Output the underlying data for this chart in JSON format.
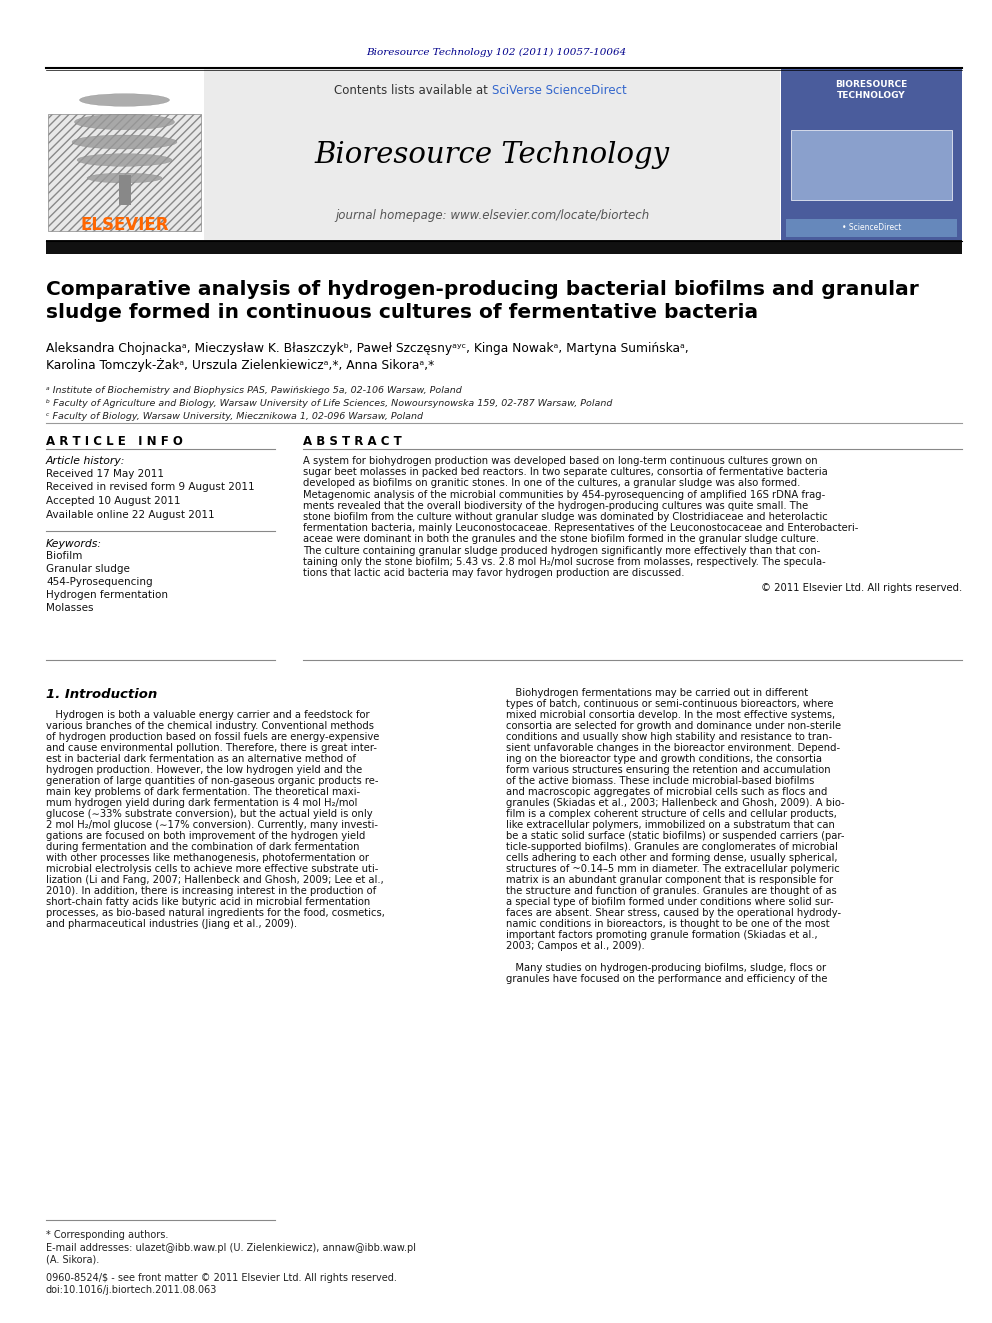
{
  "journal_ref": "Bioresource Technology 102 (2011) 10057-10064",
  "journal_name": "Bioresource Technology",
  "journal_homepage": "journal homepage: www.elsevier.com/locate/biortech",
  "contents_text_plain": "Contents lists available at ",
  "contents_text_link": "SciVerse ScienceDirect",
  "elsevier_text": "ELSEVIER",
  "title_line1": "Comparative analysis of hydrogen-producing bacterial biofilms and granular",
  "title_line2": "sludge formed in continuous cultures of fermentative bacteria",
  "authors_line1": "Aleksandra Chojnackaᵃ, Mieczysław K. Błaszczykᵇ, Paweł Szczęsnyᵃʸᶜ, Kinga Nowakᵃ, Martyna Sumińskaᵃ,",
  "authors_line2": "Karolina Tomczyk-Żakᵃ, Urszula Zielenkiewiczᵃ,*, Anna Sikoraᵃ,*",
  "affil_a": "ᵃ Institute of Biochemistry and Biophysics PAS, Pawińskiego 5a, 02-106 Warsaw, Poland",
  "affil_b": "ᵇ Faculty of Agriculture and Biology, Warsaw University of Life Sciences, Nowoursynowska 159, 02-787 Warsaw, Poland",
  "affil_c": "ᶜ Faculty of Biology, Warsaw University, Miecznikowa 1, 02-096 Warsaw, Poland",
  "article_info_title": "A R T I C L E   I N F O",
  "article_history_title": "Article history:",
  "received1": "Received 17 May 2011",
  "received2": "Received in revised form 9 August 2011",
  "accepted": "Accepted 10 August 2011",
  "available": "Available online 22 August 2011",
  "keywords_title": "Keywords:",
  "keywords": [
    "Biofilm",
    "Granular sludge",
    "454-Pyrosequencing",
    "Hydrogen fermentation",
    "Molasses"
  ],
  "abstract_title": "A B S T R A C T",
  "abstract_lines": [
    "A system for biohydrogen production was developed based on long-term continuous cultures grown on",
    "sugar beet molasses in packed bed reactors. In two separate cultures, consortia of fermentative bacteria",
    "developed as biofilms on granitic stones. In one of the cultures, a granular sludge was also formed.",
    "Metagenomic analysis of the microbial communities by 454-pyrosequencing of amplified 16S rDNA frag-",
    "ments revealed that the overall biodiversity of the hydrogen-producing cultures was quite small. The",
    "stone biofilm from the culture without granular sludge was dominated by Clostridiaceae and heterolactic",
    "fermentation bacteria, mainly Leuconostocaceae. Representatives of the Leuconostocaceae and Enterobacteri-",
    "aceae were dominant in both the granules and the stone biofilm formed in the granular sludge culture.",
    "The culture containing granular sludge produced hydrogen significantly more effectively than that con-",
    "taining only the stone biofilm; 5.43 vs. 2.8 mol H₂/mol sucrose from molasses, respectively. The specula-",
    "tions that lactic acid bacteria may favor hydrogen production are discussed."
  ],
  "abstract_copyright": "© 2011 Elsevier Ltd. All rights reserved.",
  "section1_title": "1. Introduction",
  "intro_col1_lines": [
    "   Hydrogen is both a valuable energy carrier and a feedstock for",
    "various branches of the chemical industry. Conventional methods",
    "of hydrogen production based on fossil fuels are energy-expensive",
    "and cause environmental pollution. Therefore, there is great inter-",
    "est in bacterial dark fermentation as an alternative method of",
    "hydrogen production. However, the low hydrogen yield and the",
    "generation of large quantities of non-gaseous organic products re-",
    "main key problems of dark fermentation. The theoretical maxi-",
    "mum hydrogen yield during dark fermentation is 4 mol H₂/mol",
    "glucose (∼33% substrate conversion), but the actual yield is only",
    "2 mol H₂/mol glucose (∼17% conversion). Currently, many investi-",
    "gations are focused on both improvement of the hydrogen yield",
    "during fermentation and the combination of dark fermentation",
    "with other processes like methanogenesis, photofermentation or",
    "microbial electrolysis cells to achieve more effective substrate uti-",
    "lization (Li and Fang, 2007; Hallenbeck and Ghosh, 2009; Lee et al.,",
    "2010). In addition, there is increasing interest in the production of",
    "short-chain fatty acids like butyric acid in microbial fermentation",
    "processes, as bio-based natural ingredients for the food, cosmetics,",
    "and pharmaceutical industries (Jiang et al., 2009)."
  ],
  "intro_col2_lines": [
    "   Biohydrogen fermentations may be carried out in different",
    "types of batch, continuous or semi-continuous bioreactors, where",
    "mixed microbial consortia develop. In the most effective systems,",
    "consortia are selected for growth and dominance under non-sterile",
    "conditions and usually show high stability and resistance to tran-",
    "sient unfavorable changes in the bioreactor environment. Depend-",
    "ing on the bioreactor type and growth conditions, the consortia",
    "form various structures ensuring the retention and accumulation",
    "of the active biomass. These include microbial-based biofilms",
    "and macroscopic aggregates of microbial cells such as flocs and",
    "granules (Skiadas et al., 2003; Hallenbeck and Ghosh, 2009). A bio-",
    "film is a complex coherent structure of cells and cellular products,",
    "like extracellular polymers, immobilized on a substratum that can",
    "be a static solid surface (static biofilms) or suspended carriers (par-",
    "ticle-supported biofilms). Granules are conglomerates of microbial",
    "cells adhering to each other and forming dense, usually spherical,",
    "structures of ~0.14–5 mm in diameter. The extracellular polymeric",
    "matrix is an abundant granular component that is responsible for",
    "the structure and function of granules. Granules are thought of as",
    "a special type of biofilm formed under conditions where solid sur-",
    "faces are absent. Shear stress, caused by the operational hydrody-",
    "namic conditions in bioreactors, is thought to be one of the most",
    "important factors promoting granule formation (Skiadas et al.,",
    "2003; Campos et al., 2009)."
  ],
  "col2_para2_lines": [
    "   Many studies on hydrogen-producing biofilms, sludge, flocs or",
    "granules have focused on the performance and efficiency of the"
  ],
  "footnote_star": "* Corresponding authors.",
  "footnote_email1": "E-mail addresses: ulazet@ibb.waw.pl (U. Zielenkiewicz), annaw@ibb.waw.pl",
  "footnote_email2": "(A. Sikora).",
  "footnote_issn": "0960-8524/$ - see front matter © 2011 Elsevier Ltd. All rights reserved.",
  "footnote_doi": "doi:10.1016/j.biortech.2011.08.063",
  "bg_color": "#ffffff",
  "journal_ref_color": "#00008B",
  "elsevier_color": "#FF6600",
  "link_color": "#3366CC",
  "dark_bar_color": "#111111",
  "header_bg_color": "#ebebeb",
  "cover_bg_color": "#4a5c9c"
}
